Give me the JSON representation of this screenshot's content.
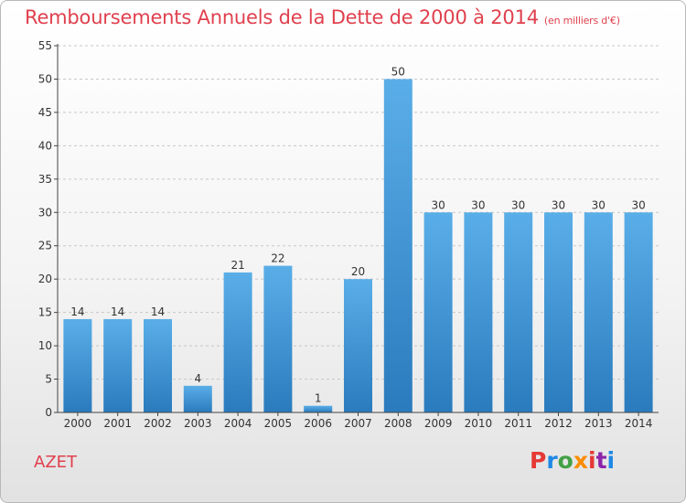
{
  "colors": {
    "title": "#e0404e",
    "bar_top": "#5aaee8",
    "bar_bottom": "#2a7bbd",
    "grid": "#c8c8c8",
    "axis": "#444444",
    "logo": [
      "#e53935",
      "#1e88e5",
      "#43a047",
      "#fb8c00",
      "#e53935",
      "#8e24aa",
      "#1e88e5"
    ]
  },
  "place_name": "AZET",
  "brand": "Proxiti",
  "chart_data": {
    "type": "bar",
    "title": "Remboursements Annuels de la Dette de 2000 à 2014",
    "subtitle": "(en milliers d'€)",
    "categories": [
      "2000",
      "2001",
      "2002",
      "2003",
      "2004",
      "2005",
      "2006",
      "2007",
      "2008",
      "2009",
      "2010",
      "2011",
      "2012",
      "2013",
      "2014"
    ],
    "values": [
      14,
      14,
      14,
      4,
      21,
      22,
      1,
      20,
      50,
      30,
      30,
      30,
      30,
      30,
      30
    ],
    "ylim": [
      0,
      55
    ],
    "yticks": [
      0,
      5,
      10,
      15,
      20,
      25,
      30,
      35,
      40,
      45,
      50,
      55
    ],
    "grid": true,
    "legend": "none"
  }
}
